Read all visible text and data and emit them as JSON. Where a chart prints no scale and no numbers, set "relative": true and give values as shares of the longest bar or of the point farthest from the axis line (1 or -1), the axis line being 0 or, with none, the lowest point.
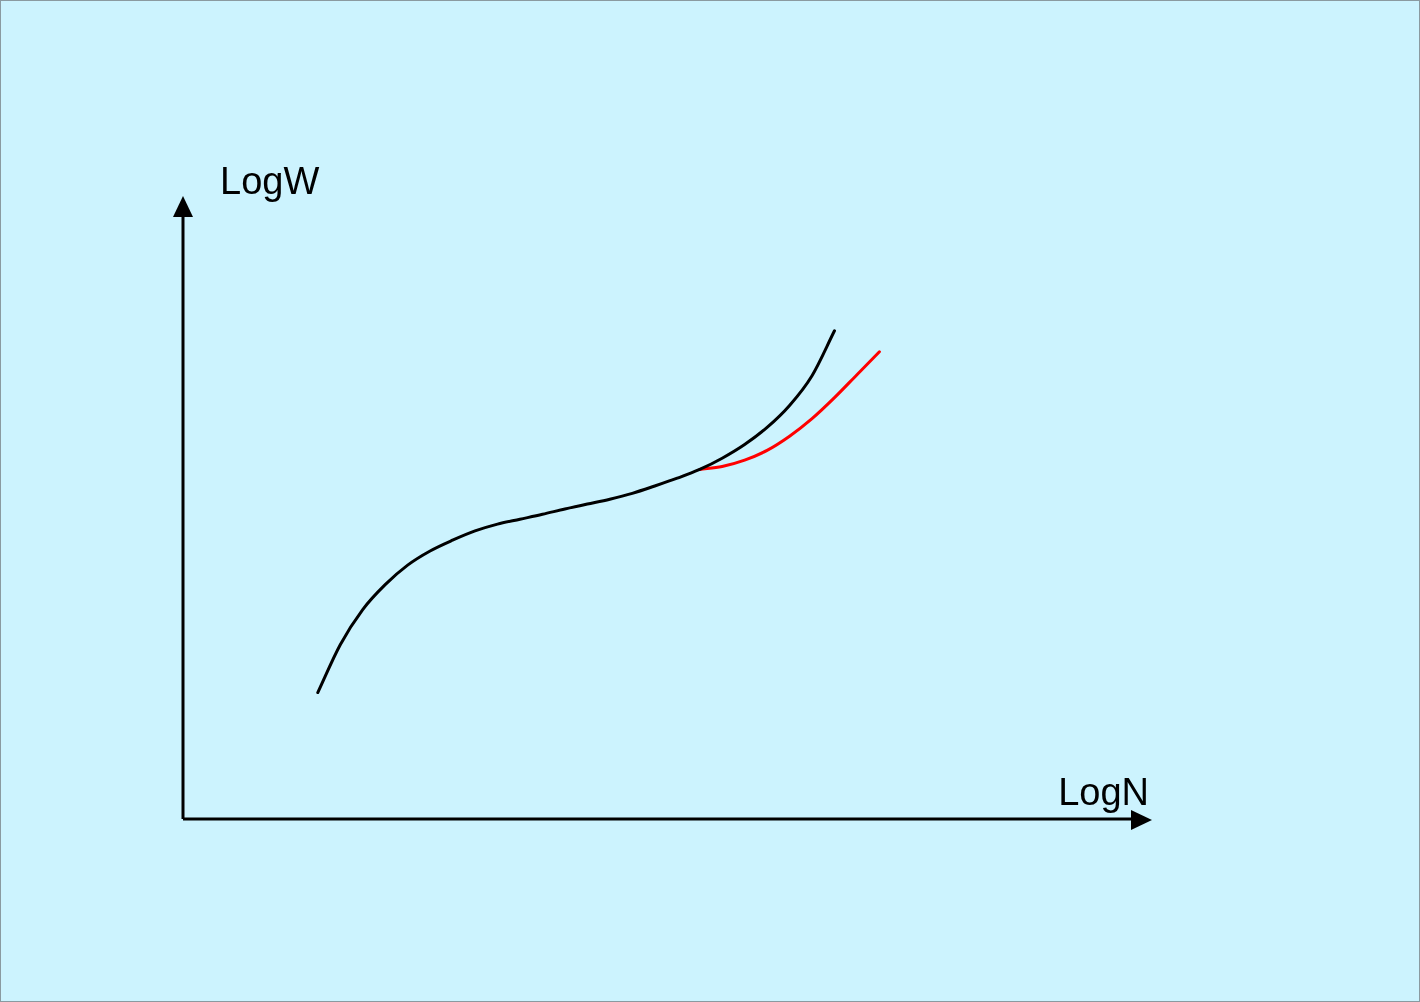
{
  "chart_data": {
    "type": "line",
    "relative": true,
    "xlabel": "LogN",
    "ylabel": "LogW",
    "legend": false,
    "marker": "none",
    "line_style": "solid",
    "categories": [
      null,
      null,
      null,
      null,
      null,
      null,
      null,
      null,
      null,
      null,
      null,
      null,
      null,
      null,
      null,
      null,
      null,
      null,
      null,
      null,
      null,
      null,
      null,
      null,
      null,
      null
    ],
    "series": [
      {
        "color": "#000000",
        "values": [
          0.259,
          0.357,
          0.429,
          0.48,
          0.52,
          0.549,
          0.571,
          0.59,
          0.604,
          0.614,
          0.624,
          0.635,
          0.645,
          0.655,
          0.667,
          0.682,
          0.698,
          0.716,
          0.739,
          0.767,
          0.802,
          0.847,
          0.908,
          1,
          null,
          null
        ]
      },
      {
        "color": "#ff0000",
        "values": [
          null,
          null,
          null,
          null,
          null,
          null,
          null,
          null,
          null,
          null,
          null,
          null,
          null,
          null,
          null,
          null,
          null,
          0.716,
          0.722,
          0.735,
          0.755,
          0.784,
          0.82,
          0.863,
          0.91,
          0.957
        ]
      }
    ]
  }
}
